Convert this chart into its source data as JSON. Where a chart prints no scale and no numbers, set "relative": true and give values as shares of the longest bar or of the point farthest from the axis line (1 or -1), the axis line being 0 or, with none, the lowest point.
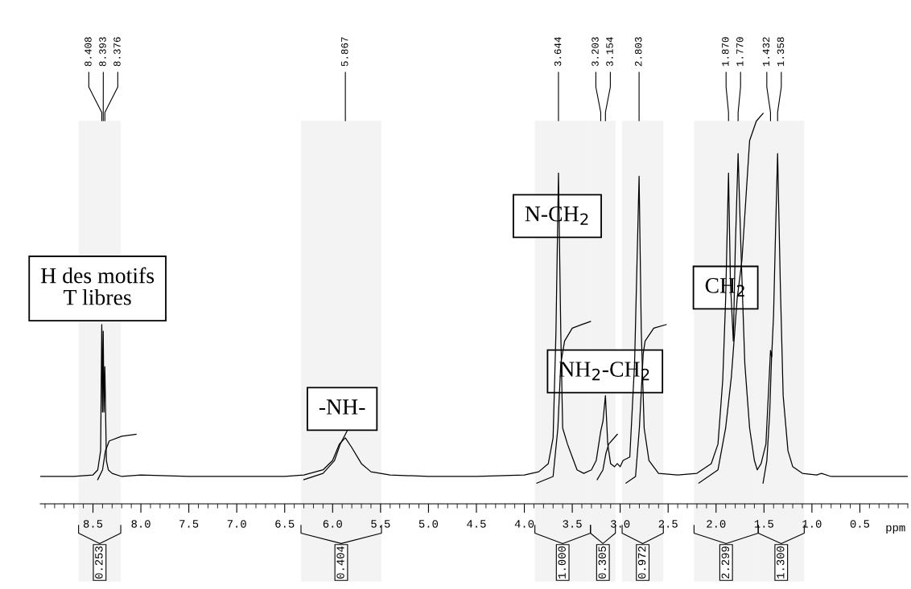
{
  "chart_data": {
    "type": "line",
    "relative": true,
    "xlabel": "ppm",
    "grid": false,
    "xlim": [
      9.05,
      0.0
    ],
    "xticks": [
      8.5,
      {
        "value": 8,
        "label": "8.0"
      },
      7.5,
      {
        "value": 7,
        "label": "7.0"
      },
      6.5,
      {
        "value": 6,
        "label": "6.0"
      },
      5.5,
      {
        "value": 5,
        "label": "5.0"
      },
      4.5,
      {
        "value": 4,
        "label": "4.0"
      },
      3.5,
      {
        "value": 3,
        "label": "3.0"
      },
      2.5,
      {
        "value": 2,
        "label": "2.0"
      },
      1.5,
      {
        "value": 1,
        "label": "1.0"
      },
      0.5
    ],
    "series": [
      {
        "color": "#000000",
        "x": [
          9.05,
          8.7,
          8.5,
          8.45,
          8.42,
          8.408,
          8.4,
          8.393,
          8.385,
          8.376,
          8.36,
          8.34,
          8.3,
          8.2,
          8.0,
          7.5,
          7.0,
          6.5,
          6.3,
          6.1,
          6.0,
          5.93,
          5.867,
          5.8,
          5.7,
          5.6,
          5.4,
          5.0,
          4.5,
          4.0,
          3.85,
          3.75,
          3.7,
          3.67,
          3.644,
          3.62,
          3.6,
          3.55,
          3.5,
          3.45,
          3.38,
          3.3,
          3.25,
          3.203,
          3.18,
          3.154,
          3.13,
          3.1,
          3.06,
          3.03,
          3.0,
          2.97,
          2.9,
          2.85,
          2.803,
          2.78,
          2.75,
          2.7,
          2.6,
          2.4,
          2.2,
          2.05,
          1.98,
          1.93,
          1.9,
          1.87,
          1.85,
          1.82,
          1.8,
          1.77,
          1.74,
          1.7,
          1.65,
          1.6,
          1.57,
          1.53,
          1.48,
          1.45,
          1.432,
          1.42,
          1.4,
          1.38,
          1.358,
          1.33,
          1.3,
          1.25,
          1.2,
          1.1,
          0.95,
          0.9,
          0.8,
          0.5,
          0.0
        ],
        "values": [
          0.07,
          0.07,
          0.074,
          0.087,
          0.136,
          0.459,
          0.235,
          0.442,
          0.235,
          0.351,
          0.111,
          0.087,
          0.078,
          0.07,
          0.074,
          0.07,
          0.07,
          0.07,
          0.074,
          0.087,
          0.111,
          0.153,
          0.169,
          0.144,
          0.103,
          0.082,
          0.074,
          0.07,
          0.07,
          0.074,
          0.082,
          0.103,
          0.169,
          0.442,
          0.847,
          0.442,
          0.194,
          0.153,
          0.12,
          0.087,
          0.078,
          0.087,
          0.111,
          0.186,
          0.211,
          0.277,
          0.153,
          0.103,
          0.095,
          0.103,
          0.095,
          0.111,
          0.12,
          0.359,
          0.839,
          0.442,
          0.194,
          0.111,
          0.078,
          0.074,
          0.078,
          0.103,
          0.153,
          0.318,
          0.525,
          0.847,
          0.566,
          0.417,
          0.649,
          0.897,
          0.649,
          0.359,
          0.194,
          0.111,
          0.087,
          0.103,
          0.153,
          0.302,
          0.393,
          0.376,
          0.484,
          0.69,
          0.897,
          0.566,
          0.277,
          0.136,
          0.095,
          0.078,
          0.074,
          0.078,
          0.07,
          0.07,
          0.07
        ]
      },
      {
        "color": "#000000",
        "x": [
          8.45,
          8.4,
          8.37,
          8.33,
          8.2,
          8.05
        ],
        "values": [
          0.062,
          0.087,
          0.136,
          0.161,
          0.173,
          0.178
        ]
      },
      {
        "color": "#000000",
        "x": [
          6.3,
          6.1,
          5.98,
          5.92,
          5.85
        ],
        "values": [
          0.062,
          0.078,
          0.111,
          0.153,
          0.186
        ]
      },
      {
        "color": "#000000",
        "x": [
          3.87,
          3.7,
          3.65,
          3.62,
          3.58,
          3.5,
          3.4,
          3.31
        ],
        "values": [
          0.053,
          0.07,
          0.194,
          0.359,
          0.417,
          0.45,
          0.459,
          0.467
        ]
      },
      {
        "color": "#000000",
        "x": [
          3.24,
          3.18,
          3.15,
          3.12,
          3.03
        ],
        "values": [
          0.062,
          0.087,
          0.128,
          0.153,
          0.178
        ]
      },
      {
        "color": "#000000",
        "x": [
          2.94,
          2.84,
          2.8,
          2.76,
          2.74,
          2.65,
          2.52
        ],
        "values": [
          0.053,
          0.07,
          0.194,
          0.384,
          0.417,
          0.45,
          0.459
        ]
      },
      {
        "color": "#000000",
        "x": [
          2.18,
          1.98,
          1.9,
          1.84,
          1.78,
          1.73,
          1.65,
          1.58,
          1.51
        ],
        "values": [
          0.053,
          0.087,
          0.194,
          0.326,
          0.525,
          0.624,
          0.93,
          0.98,
          1.0
        ]
      },
      {
        "color": "#000000",
        "x": [
          1.51,
          1.47,
          1.44,
          1.42
        ],
        "values": [
          0.053,
          0.111,
          0.235,
          0.384
        ]
      }
    ],
    "annotations": [
      {
        "text": "8.408",
        "x": 8.408
      },
      {
        "text": "8.393",
        "x": 8.393
      },
      {
        "text": "8.376",
        "x": 8.376
      },
      {
        "text": "5.867",
        "x": 5.867
      },
      {
        "text": "3.644",
        "x": 3.644
      },
      {
        "text": "3.203",
        "x": 3.203
      },
      {
        "text": "3.154",
        "x": 3.154
      },
      {
        "text": "2.803",
        "x": 2.803
      },
      {
        "text": "1.870",
        "x": 1.87
      },
      {
        "text": "1.770",
        "x": 1.77
      },
      {
        "text": "1.432",
        "x": 1.432
      },
      {
        "text": "1.358",
        "x": 1.358
      },
      "H des motifs\nT libres",
      "-NH-",
      "N-CH$_{2}$",
      "CH$_{2}$",
      "NH$_{2}$-CH$_{2}$"
    ],
    "bands": [
      {
        "axis": "x",
        "from": 8.65,
        "to": 8.21,
        "label": "0.253"
      },
      {
        "axis": "x",
        "from": 6.33,
        "to": 5.49,
        "label": "0.404"
      },
      {
        "axis": "x",
        "from": 3.89,
        "to": 3.31,
        "label": "1.000"
      },
      {
        "axis": "x",
        "from": 3.31,
        "to": 3.05,
        "label": "0.305"
      },
      {
        "axis": "x",
        "from": 2.98,
        "to": 2.55,
        "label": "0.972"
      },
      {
        "axis": "x",
        "from": 2.23,
        "to": 1.56,
        "label": "2.299"
      },
      {
        "axis": "x",
        "from": 1.56,
        "to": 1.08,
        "label": "1.300"
      }
    ]
  }
}
